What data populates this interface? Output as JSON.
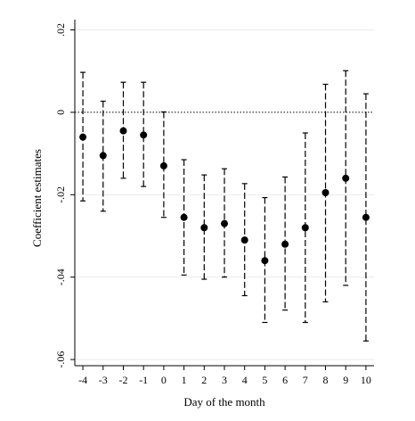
{
  "chart_data": {
    "type": "scatter",
    "subtype": "coefficient plot with confidence intervals",
    "title": "",
    "xlabel": "Day of the month",
    "ylabel": "Coefficient estimates",
    "x": [
      -4,
      -3,
      -2,
      -1,
      0,
      1,
      2,
      3,
      4,
      5,
      6,
      7,
      8,
      9,
      10
    ],
    "x_tick_labels": [
      "-4",
      "-3",
      "-2",
      "-1",
      "0",
      "1",
      "2",
      "3",
      "4",
      "5",
      "6",
      "7",
      "8",
      "9",
      "10"
    ],
    "y_ticks": [
      -0.06,
      -0.04,
      -0.02,
      0,
      0.02
    ],
    "y_tick_labels": [
      "-.06",
      "-.04",
      "-.02",
      "0",
      ".02"
    ],
    "ylim": [
      -0.0615,
      0.0225
    ],
    "xlim": [
      -4.4,
      10.4
    ],
    "series": [
      {
        "values": [
          -0.006,
          -0.0105,
          -0.0045,
          -0.0055,
          -0.013,
          -0.0255,
          -0.028,
          -0.027,
          -0.031,
          -0.036,
          -0.032,
          -0.028,
          -0.0195,
          -0.016,
          -0.0255
        ],
        "ci_lower": [
          -0.0215,
          -0.024,
          -0.016,
          -0.018,
          -0.0255,
          -0.0395,
          -0.0405,
          -0.04,
          -0.0445,
          -0.051,
          -0.048,
          -0.051,
          -0.046,
          -0.042,
          -0.0555
        ],
        "ci_upper": [
          0.0097,
          0.0027,
          0.0073,
          0.0073,
          0.0001,
          -0.0115,
          -0.0152,
          -0.0137,
          -0.0173,
          -0.0207,
          -0.0157,
          -0.005,
          0.0068,
          0.0101,
          0.0045
        ]
      }
    ],
    "reference_line": {
      "y": 0,
      "style": "dotted"
    },
    "grid": "horizontal",
    "legend": "none",
    "colors": {
      "marker": "#000000",
      "ci_line": "#000000",
      "grid": "#eaeaea",
      "axis": "#000000"
    }
  }
}
